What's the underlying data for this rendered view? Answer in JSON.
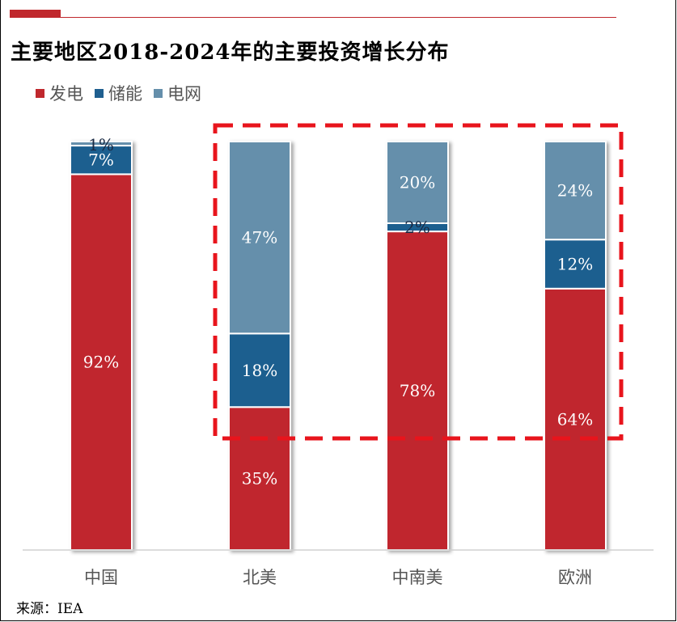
{
  "header": {
    "title": "主要地区2018-2024年的主要投资增长分布"
  },
  "source": "来源：IEA",
  "colors": {
    "accent": "#c0282d",
    "generation": "#c0282d",
    "storage": "#1f5f8f",
    "grid": "#658fab",
    "highlight_box": "#e8141c"
  },
  "chart_data": {
    "type": "bar",
    "stacked": true,
    "percent_stacked": true,
    "title": "主要地区2018-2024年的主要投资增长分布",
    "xlabel": "",
    "ylabel": "",
    "ylim": [
      0,
      100
    ],
    "grid": false,
    "legend_position": "top-left",
    "categories": [
      "中国",
      "北美",
      "中南美",
      "欧洲"
    ],
    "series": [
      {
        "name": "发电",
        "color": "#c0282d",
        "values": [
          92,
          35,
          78,
          64
        ],
        "labels": [
          "92%",
          "35%",
          "78%",
          "64%"
        ]
      },
      {
        "name": "储能",
        "color": "#1f5f8f",
        "values": [
          7,
          18,
          2,
          12
        ],
        "labels": [
          "7%",
          "18%",
          "2%",
          "12%"
        ]
      },
      {
        "name": "电网",
        "color": "#658fab",
        "values": [
          1,
          47,
          20,
          24
        ],
        "labels": [
          "1%",
          "47%",
          "20%",
          "24%"
        ]
      }
    ],
    "annotation": "highlight box around 北美, 中南美, 欧洲"
  }
}
